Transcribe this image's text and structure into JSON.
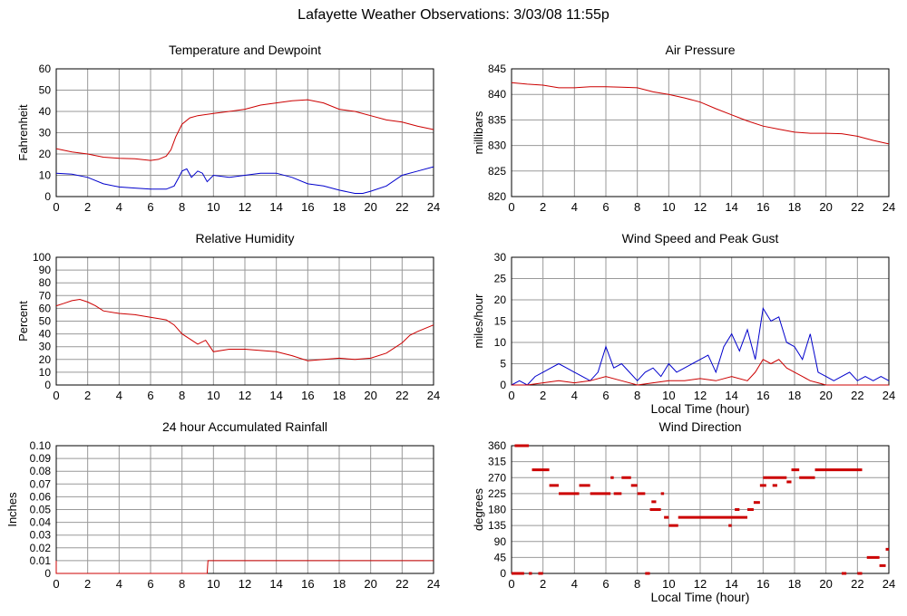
{
  "title": "Lafayette Weather Observations: 3/03/08 11:55p",
  "colors": {
    "red": "#cc0000",
    "blue": "#0000cc",
    "grid": "#999999"
  },
  "chart_data": [
    {
      "id": "temp",
      "type": "line",
      "title": "Temperature and Dewpoint",
      "ylabel": "Fahrenheit",
      "xlabel": "",
      "xlim": [
        0,
        24
      ],
      "ylim": [
        0,
        60
      ],
      "x_ticks": [
        "0",
        "2",
        "4",
        "6",
        "8",
        "10",
        "12",
        "14",
        "16",
        "18",
        "20",
        "22",
        "24"
      ],
      "y_ticks": [
        "0",
        "10",
        "20",
        "30",
        "40",
        "50",
        "60"
      ],
      "grid": true,
      "series": [
        {
          "color": "#cc0000",
          "x": [
            0,
            1,
            2,
            3,
            4,
            5,
            6,
            6.5,
            7,
            7.3,
            7.6,
            8,
            8.5,
            9,
            10,
            11,
            12,
            13,
            14,
            15,
            16,
            17,
            18,
            19,
            20,
            21,
            22,
            23,
            24
          ],
          "y": [
            22.5,
            21,
            20,
            18.5,
            18,
            17.8,
            17,
            17.5,
            19,
            22,
            28,
            34,
            37,
            38,
            39,
            40,
            41,
            43,
            44,
            45,
            45.5,
            44,
            41,
            40,
            38,
            36,
            35,
            33,
            31.5
          ]
        },
        {
          "color": "#0000cc",
          "x": [
            0,
            1,
            2,
            3,
            4,
            5,
            6,
            7,
            7.5,
            7.8,
            8,
            8.3,
            8.6,
            9,
            9.3,
            9.6,
            10,
            11,
            12,
            13,
            14,
            15,
            16,
            17,
            18,
            19,
            19.5,
            20,
            21,
            22,
            23,
            24
          ],
          "y": [
            11,
            10.5,
            9,
            6,
            4.5,
            4,
            3.5,
            3.5,
            5,
            9,
            12,
            13,
            9,
            12,
            11,
            7,
            10,
            9,
            10,
            11,
            11,
            9,
            6,
            5,
            3,
            1.5,
            1.5,
            2.5,
            5,
            10,
            12,
            14
          ]
        }
      ]
    },
    {
      "id": "press",
      "type": "line",
      "title": "Air Pressure",
      "ylabel": "millibars",
      "xlabel": "",
      "xlim": [
        0,
        24
      ],
      "ylim": [
        820,
        845
      ],
      "x_ticks": [
        "0",
        "2",
        "4",
        "6",
        "8",
        "10",
        "12",
        "14",
        "16",
        "18",
        "20",
        "22",
        "24"
      ],
      "y_ticks": [
        "820",
        "825",
        "830",
        "835",
        "840",
        "845"
      ],
      "grid": true,
      "series": [
        {
          "color": "#cc0000",
          "x": [
            0,
            1,
            2,
            3,
            4,
            5,
            6,
            7,
            8,
            9,
            10,
            11,
            12,
            13,
            14,
            15,
            16,
            17,
            18,
            19,
            20,
            21,
            22,
            23,
            24
          ],
          "y": [
            842.3,
            842,
            841.8,
            841.3,
            841.3,
            841.5,
            841.5,
            841.4,
            841.3,
            840.5,
            840,
            839.3,
            838.5,
            837.2,
            836,
            834.8,
            833.8,
            833.2,
            832.6,
            832.4,
            832.4,
            832.3,
            831.8,
            831,
            830.3
          ]
        }
      ]
    },
    {
      "id": "rh",
      "type": "line",
      "title": "Relative Humidity",
      "ylabel": "Percent",
      "xlabel": "",
      "xlim": [
        0,
        24
      ],
      "ylim": [
        0,
        100
      ],
      "x_ticks": [
        "0",
        "2",
        "4",
        "6",
        "8",
        "10",
        "12",
        "14",
        "16",
        "18",
        "20",
        "22",
        "24"
      ],
      "y_ticks": [
        "0",
        "10",
        "20",
        "30",
        "40",
        "50",
        "60",
        "70",
        "80",
        "90",
        "100"
      ],
      "grid": true,
      "series": [
        {
          "color": "#cc0000",
          "x": [
            0,
            0.5,
            1,
            1.5,
            2,
            2.5,
            3,
            4,
            5,
            6,
            7,
            7.5,
            8,
            8.5,
            9,
            9.5,
            10,
            11,
            12,
            13,
            14,
            15,
            16,
            17,
            18,
            19,
            20,
            21,
            22,
            22.5,
            23,
            24
          ],
          "y": [
            62,
            64,
            66,
            67,
            65,
            62,
            58,
            56,
            55,
            53,
            51,
            47,
            40,
            36,
            32,
            35,
            26,
            28,
            28,
            27,
            26,
            23,
            19,
            20,
            21,
            20,
            21,
            25,
            33,
            39,
            42,
            47
          ]
        }
      ]
    },
    {
      "id": "wind",
      "type": "line",
      "title": "Wind Speed and Peak Gust",
      "ylabel": "miles/hour",
      "xlabel": "Local Time (hour)",
      "xlim": [
        0,
        24
      ],
      "ylim": [
        0,
        30
      ],
      "x_ticks": [
        "0",
        "2",
        "4",
        "6",
        "8",
        "10",
        "12",
        "14",
        "16",
        "18",
        "20",
        "22",
        "24"
      ],
      "y_ticks": [
        "0",
        "5",
        "10",
        "15",
        "20",
        "25",
        "30"
      ],
      "grid": true,
      "series": [
        {
          "color": "#0000cc",
          "x": [
            0,
            0.5,
            1,
            1.5,
            2,
            2.5,
            3,
            3.5,
            4,
            4.5,
            5,
            5.5,
            6,
            6.5,
            7,
            7.5,
            8,
            8.5,
            9,
            9.5,
            10,
            10.5,
            11,
            11.5,
            12,
            12.5,
            13,
            13.5,
            14,
            14.5,
            15,
            15.5,
            16,
            16.5,
            17,
            17.5,
            18,
            18.5,
            19,
            19.5,
            20,
            20.5,
            21,
            21.5,
            22,
            22.5,
            23,
            23.5,
            24
          ],
          "y": [
            0,
            1,
            0,
            2,
            3,
            4,
            5,
            4,
            3,
            2,
            1,
            3,
            9,
            4,
            5,
            3,
            1,
            3,
            4,
            2,
            5,
            3,
            4,
            5,
            6,
            7,
            3,
            9,
            12,
            8,
            13,
            6,
            18,
            15,
            16,
            10,
            9,
            6,
            12,
            3,
            2,
            1,
            2,
            3,
            1,
            2,
            1,
            2,
            1
          ]
        },
        {
          "color": "#cc0000",
          "x": [
            0,
            1,
            2,
            3,
            4,
            5,
            6,
            7,
            8,
            9,
            10,
            11,
            12,
            13,
            14,
            15,
            15.5,
            16,
            16.5,
            17,
            17.5,
            18,
            18.5,
            19,
            19.5,
            20,
            21,
            22,
            23,
            24
          ],
          "y": [
            0,
            0,
            0.5,
            1,
            0.5,
            1,
            2,
            1,
            0,
            0.5,
            1,
            1,
            1.5,
            1,
            2,
            1,
            3,
            6,
            5,
            6,
            4,
            3,
            2,
            1,
            0.5,
            0,
            0,
            0,
            0,
            0
          ]
        }
      ]
    },
    {
      "id": "rain",
      "type": "line",
      "title": "24 hour Accumulated Rainfall",
      "ylabel": "Inches",
      "xlabel": "",
      "xlim": [
        0,
        24
      ],
      "ylim": [
        0,
        0.1
      ],
      "x_ticks": [
        "0",
        "2",
        "4",
        "6",
        "8",
        "10",
        "12",
        "14",
        "16",
        "18",
        "20",
        "22",
        "24"
      ],
      "y_ticks": [
        "0",
        "0.01",
        "0.02",
        "0.03",
        "0.04",
        "0.05",
        "0.06",
        "0.07",
        "0.08",
        "0.09",
        "0.10"
      ],
      "grid": true,
      "series": [
        {
          "color": "#cc0000",
          "x": [
            0,
            0,
            0.02,
            9.6,
            9.65,
            24
          ],
          "y": [
            0.01,
            0,
            0,
            0,
            0.01,
            0.01
          ]
        }
      ]
    },
    {
      "id": "dir",
      "type": "scatter",
      "title": "Wind Direction",
      "ylabel": "degrees",
      "xlabel": "Local Time (hour)",
      "xlim": [
        0,
        24
      ],
      "ylim": [
        0,
        360
      ],
      "x_ticks": [
        "0",
        "2",
        "4",
        "6",
        "8",
        "10",
        "12",
        "14",
        "16",
        "18",
        "20",
        "22",
        "24"
      ],
      "y_ticks": [
        "0",
        "45",
        "90",
        "135",
        "180",
        "225",
        "270",
        "315",
        "360"
      ],
      "grid": true,
      "series": [
        {
          "color": "#cc0000",
          "segments": [
            [
              0,
              0.8,
              0
            ],
            [
              0.2,
              1.1,
              360
            ],
            [
              1.1,
              1.3,
              0
            ],
            [
              1.3,
              2.4,
              292
            ],
            [
              1.7,
              2.0,
              0
            ],
            [
              2.4,
              3.0,
              248
            ],
            [
              3.0,
              4.3,
              225
            ],
            [
              4.3,
              5.0,
              248
            ],
            [
              5.0,
              6.3,
              225
            ],
            [
              6.3,
              6.5,
              270
            ],
            [
              6.5,
              7.0,
              225
            ],
            [
              7.0,
              7.6,
              270
            ],
            [
              7.6,
              8.0,
              248
            ],
            [
              8.0,
              8.5,
              225
            ],
            [
              8.5,
              8.8,
              0
            ],
            [
              8.8,
              9.5,
              180
            ],
            [
              8.9,
              9.2,
              202
            ],
            [
              9.5,
              9.7,
              225
            ],
            [
              9.7,
              10.0,
              158
            ],
            [
              10.0,
              10.6,
              135
            ],
            [
              10.6,
              15.0,
              158
            ],
            [
              13.8,
              14.0,
              135
            ],
            [
              14.2,
              14.5,
              180
            ],
            [
              15.0,
              15.4,
              180
            ],
            [
              15.4,
              15.8,
              200
            ],
            [
              15.8,
              16.2,
              248
            ],
            [
              16.0,
              16.3,
              270
            ],
            [
              16.3,
              17.5,
              270
            ],
            [
              16.6,
              16.9,
              248
            ],
            [
              17.5,
              17.8,
              258
            ],
            [
              17.8,
              18.3,
              292
            ],
            [
              18.3,
              19.3,
              270
            ],
            [
              19.3,
              22.3,
              292
            ],
            [
              21.0,
              21.3,
              0
            ],
            [
              22.0,
              22.3,
              0
            ],
            [
              22.6,
              23.4,
              45
            ],
            [
              23.4,
              23.8,
              22
            ],
            [
              23.8,
              24.0,
              68
            ]
          ]
        }
      ]
    }
  ]
}
